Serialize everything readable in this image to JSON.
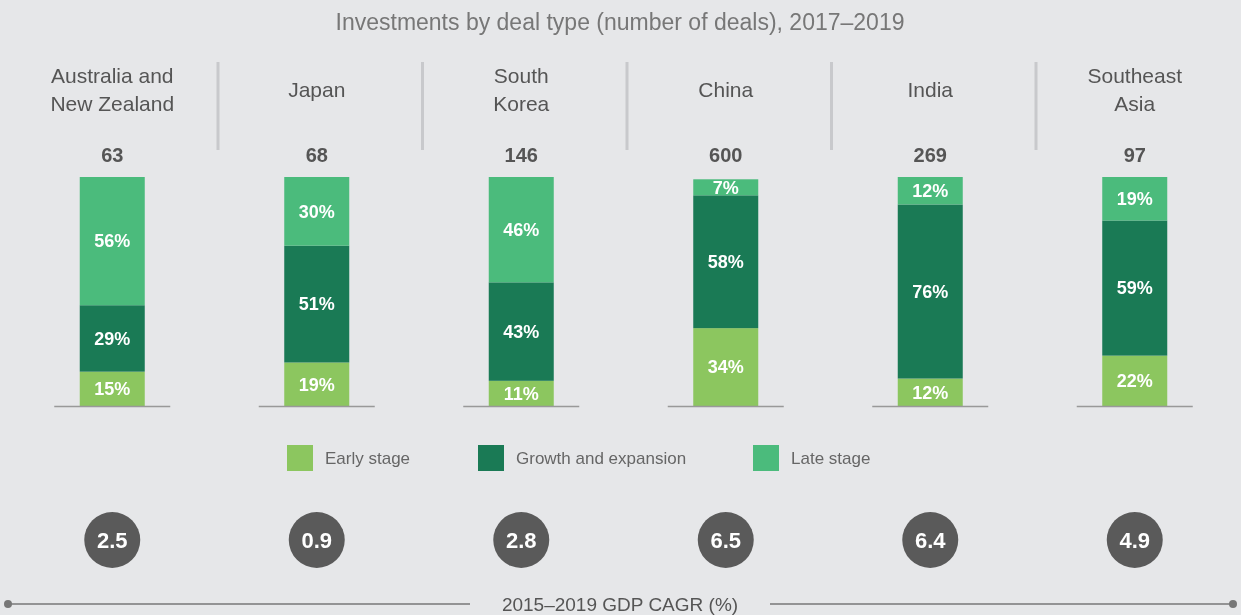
{
  "chart_data": {
    "type": "bar",
    "stacked": true,
    "title": "Investments by deal type (number of deals), 2017–2019",
    "categories": [
      "Australia and\nNew Zealand",
      "Japan",
      "South\nKorea",
      "China",
      "India",
      "Southeast\nAsia"
    ],
    "series": [
      {
        "name": "Early stage",
        "color": "#8cc65f",
        "values": [
          15,
          19,
          11,
          34,
          12,
          22
        ],
        "value_labels": [
          "15%",
          "19%",
          "11%",
          "34%",
          "12%",
          "22%"
        ]
      },
      {
        "name": "Growth and expansion",
        "color": "#1a7a55",
        "values": [
          29,
          51,
          43,
          58,
          76,
          59
        ],
        "value_labels": [
          "29%",
          "51%",
          "43%",
          "58%",
          "76%",
          "59%"
        ]
      },
      {
        "name": "Late stage",
        "color": "#4bbb7c",
        "values": [
          56,
          30,
          46,
          7,
          12,
          19
        ],
        "value_labels": [
          "56%",
          "30%",
          "46%",
          "7%",
          "12%",
          "19%"
        ]
      }
    ],
    "legend": "bottom",
    "annotations": [
      "63",
      "68",
      "146",
      "600",
      "269",
      "97",
      "2.5",
      "0.9",
      "2.8",
      "6.5",
      "6.4",
      "4.9",
      "2015–2019 GDP CAGR (%)"
    ]
  }
}
